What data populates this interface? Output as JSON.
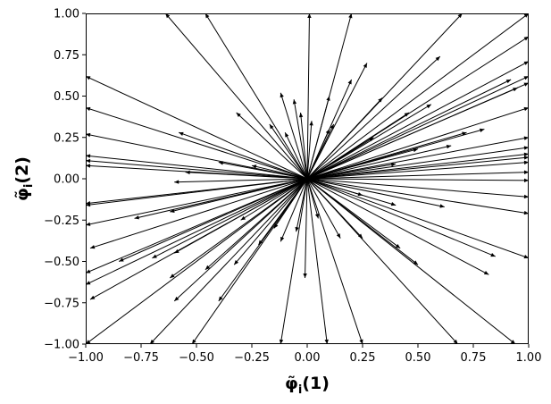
{
  "chart_data": {
    "type": "quiver",
    "xlabel": "φ̃",
    "xlabel_sub": "i",
    "xlabel_suffix": "(1)",
    "ylabel": "φ̃",
    "ylabel_sub": "i",
    "ylabel_suffix": "(2)",
    "xlim": [
      -1.0,
      1.0
    ],
    "ylim": [
      -1.0,
      1.0
    ],
    "xticks": [
      "−1.00",
      "−0.75",
      "−0.50",
      "−0.25",
      "0.00",
      "0.25",
      "0.50",
      "0.75",
      "1.00"
    ],
    "yticks": [
      "−1.00",
      "−0.75",
      "−0.50",
      "−0.25",
      "0.00",
      "0.25",
      "0.50",
      "0.75",
      "1.00"
    ],
    "grid": false,
    "origin": [
      0.0,
      0.0
    ],
    "vectors": [
      [
        -1.0,
        0.62
      ],
      [
        -1.0,
        0.43
      ],
      [
        -1.0,
        0.27
      ],
      [
        -1.0,
        0.14
      ],
      [
        -1.0,
        0.11
      ],
      [
        -1.0,
        0.08
      ],
      [
        -1.0,
        -0.15
      ],
      [
        -1.0,
        -0.16
      ],
      [
        -1.0,
        -0.28
      ],
      [
        -0.98,
        -0.42
      ],
      [
        -1.0,
        -0.57
      ],
      [
        -1.0,
        -0.64
      ],
      [
        -0.98,
        -0.73
      ],
      [
        -1.0,
        -1.0
      ],
      [
        -0.71,
        -1.0
      ],
      [
        -0.52,
        -1.0
      ],
      [
        -0.12,
        -1.0
      ],
      [
        0.09,
        -1.0
      ],
      [
        0.25,
        -1.0
      ],
      [
        0.68,
        -1.0
      ],
      [
        0.94,
        -1.0
      ],
      [
        1.0,
        -0.48
      ],
      [
        1.0,
        -0.21
      ],
      [
        1.0,
        -0.11
      ],
      [
        1.0,
        -0.01
      ],
      [
        1.0,
        0.04
      ],
      [
        1.0,
        0.1
      ],
      [
        1.0,
        0.13
      ],
      [
        1.0,
        0.15
      ],
      [
        1.0,
        0.19
      ],
      [
        1.0,
        0.25
      ],
      [
        1.0,
        0.43
      ],
      [
        1.0,
        0.58
      ],
      [
        1.0,
        0.62
      ],
      [
        1.0,
        0.71
      ],
      [
        1.0,
        0.86
      ],
      [
        1.0,
        1.0
      ],
      [
        0.7,
        1.0
      ],
      [
        0.2,
        1.0
      ],
      [
        0.01,
        1.0
      ],
      [
        -0.46,
        1.0
      ],
      [
        -0.64,
        1.0
      ],
      [
        -0.32,
        0.4
      ],
      [
        -0.12,
        0.52
      ],
      [
        -0.06,
        0.48
      ],
      [
        0.1,
        0.5
      ],
      [
        0.2,
        0.6
      ],
      [
        0.27,
        0.7
      ],
      [
        0.6,
        0.74
      ],
      [
        0.92,
        0.6
      ],
      [
        0.95,
        0.55
      ],
      [
        0.8,
        0.3
      ],
      [
        0.72,
        0.28
      ],
      [
        0.65,
        0.2
      ],
      [
        0.5,
        0.18
      ],
      [
        0.4,
        0.09
      ],
      [
        -0.58,
        0.28
      ],
      [
        -0.4,
        0.1
      ],
      [
        -0.25,
        0.08
      ],
      [
        -0.55,
        0.04
      ],
      [
        -0.6,
        -0.02
      ],
      [
        -0.62,
        -0.2
      ],
      [
        -0.78,
        -0.24
      ],
      [
        -0.85,
        -0.5
      ],
      [
        -0.7,
        -0.48
      ],
      [
        -0.6,
        -0.45
      ],
      [
        -0.62,
        -0.6
      ],
      [
        -0.6,
        -0.74
      ],
      [
        -0.46,
        -0.55
      ],
      [
        -0.4,
        -0.74
      ],
      [
        -0.33,
        -0.52
      ],
      [
        -0.22,
        -0.4
      ],
      [
        -0.12,
        -0.38
      ],
      [
        -0.05,
        -0.32
      ],
      [
        -0.01,
        -0.6
      ],
      [
        0.05,
        -0.24
      ],
      [
        0.15,
        -0.36
      ],
      [
        0.25,
        -0.36
      ],
      [
        0.42,
        -0.42
      ],
      [
        0.5,
        -0.52
      ],
      [
        0.82,
        -0.58
      ],
      [
        0.85,
        -0.47
      ],
      [
        0.62,
        -0.17
      ],
      [
        0.4,
        -0.16
      ],
      [
        0.25,
        -0.1
      ],
      [
        -0.15,
        -0.3
      ],
      [
        -0.3,
        -0.25
      ],
      [
        0.1,
        0.3
      ],
      [
        -0.1,
        0.28
      ],
      [
        0.3,
        0.25
      ],
      [
        0.46,
        0.4
      ],
      [
        0.56,
        0.45
      ],
      [
        0.12,
        0.33
      ],
      [
        -0.17,
        0.33
      ],
      [
        0.02,
        0.35
      ],
      [
        -0.03,
        0.4
      ],
      [
        0.34,
        0.49
      ]
    ]
  }
}
